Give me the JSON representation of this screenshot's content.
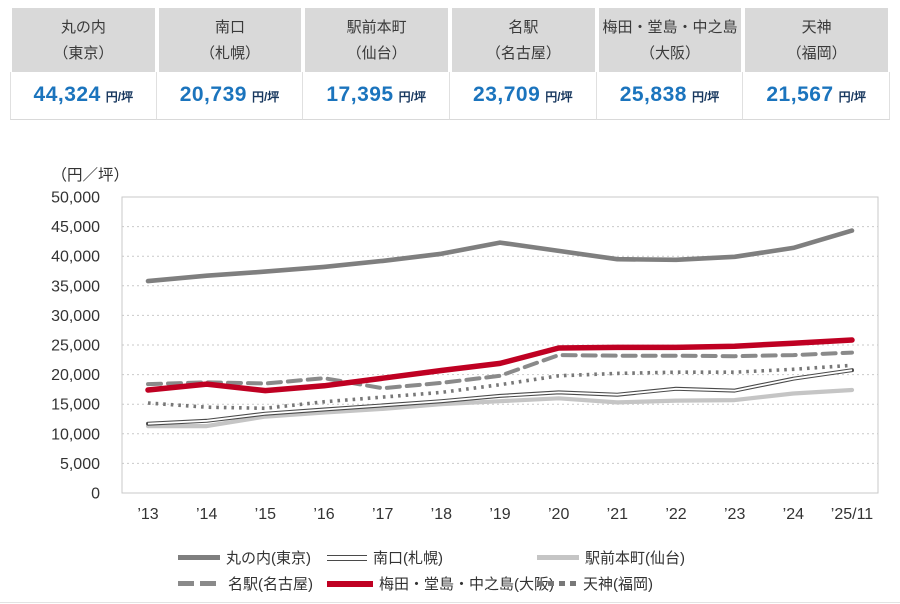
{
  "summary_table": {
    "unit_label": "円/坪",
    "cities": [
      {
        "area": "丸の内",
        "city": "（東京）",
        "value": "44,324"
      },
      {
        "area": "南口",
        "city": "（札幌）",
        "value": "20,739"
      },
      {
        "area": "駅前本町",
        "city": "（仙台）",
        "value": "17,395"
      },
      {
        "area": "名駅",
        "city": "（名古屋）",
        "value": "23,709"
      },
      {
        "area": "梅田・堂島・中之島",
        "city": "（大阪）",
        "value": "25,838"
      },
      {
        "area": "天神",
        "city": "（福岡）",
        "value": "21,567"
      }
    ]
  },
  "chart_data": {
    "type": "line",
    "y_axis_title": "（円／坪）",
    "y_min": 0,
    "y_max": 50000,
    "y_step": 5000,
    "y_tick_labels": [
      "0",
      "5,000",
      "10,000",
      "15,000",
      "20,000",
      "25,000",
      "30,000",
      "35,000",
      "40,000",
      "45,000",
      "50,000"
    ],
    "categories": [
      "’13",
      "’14",
      "’15",
      "’16",
      "’17",
      "’18",
      "’19",
      "’20",
      "’21",
      "’22",
      "’23",
      "’24",
      "’25/11"
    ],
    "grid": "horizontal-dotted",
    "legend_position": "bottom",
    "series": [
      {
        "key": "tokyo",
        "name": "丸の内(東京)",
        "color": "#7f7f7f",
        "style": "solid-thick",
        "values": [
          35800,
          36700,
          37400,
          38200,
          39200,
          40400,
          42300,
          40900,
          39500,
          39400,
          39900,
          41400,
          44324
        ]
      },
      {
        "key": "sapporo",
        "name": "南口(札幌)",
        "color": "#4a4a4a",
        "style": "double-thin",
        "values": [
          11700,
          12200,
          13400,
          14100,
          14800,
          15500,
          16400,
          17000,
          16600,
          17600,
          17300,
          19300,
          20739
        ]
      },
      {
        "key": "sendai",
        "name": "駅前本町(仙台)",
        "color": "#c5c5c5",
        "style": "solid-thick",
        "values": [
          11300,
          11300,
          12900,
          13600,
          14200,
          15000,
          15500,
          16000,
          15300,
          15600,
          15700,
          16800,
          17395
        ]
      },
      {
        "key": "nagoya",
        "name": "名駅(名古屋)",
        "color": "#8a8a8a",
        "style": "dashed",
        "values": [
          18400,
          18700,
          18500,
          19400,
          17700,
          18600,
          19800,
          23300,
          23200,
          23200,
          23100,
          23300,
          23709
        ]
      },
      {
        "key": "osaka",
        "name": "梅田・堂島・中之島(大阪)",
        "color": "#bf0022",
        "style": "solid-thick",
        "values": [
          17400,
          18400,
          17300,
          18100,
          19400,
          20700,
          21900,
          24500,
          24600,
          24600,
          24800,
          25300,
          25838
        ]
      },
      {
        "key": "fukuoka",
        "name": "天神(福岡)",
        "color": "#787878",
        "style": "dotted",
        "values": [
          15200,
          14500,
          14300,
          15400,
          16200,
          17000,
          18300,
          19800,
          20200,
          20400,
          20400,
          20900,
          21567
        ]
      }
    ]
  }
}
